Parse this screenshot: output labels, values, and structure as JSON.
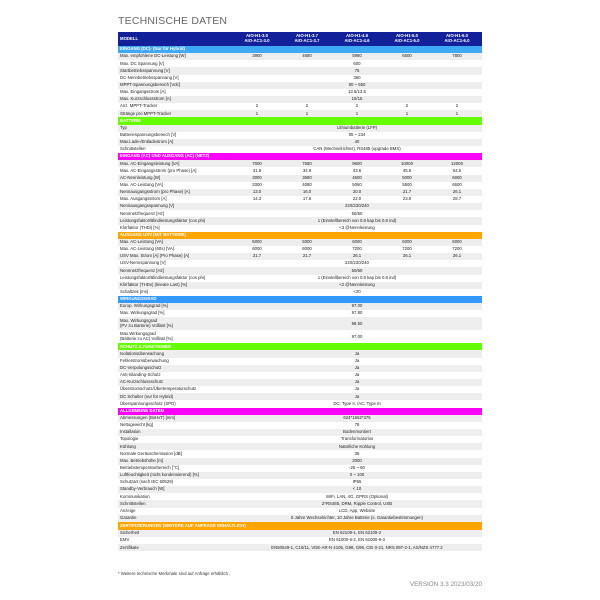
{
  "title": "TECHNISCHE DATEN",
  "header": {
    "label": "MODELL",
    "models": [
      [
        "AIO-H1-3.0",
        "AIO-AC1-3.0"
      ],
      [
        "AIO-H1-3.7",
        "AIO-AC1-3.7"
      ],
      [
        "AIO-H1-4.6",
        "AIO-AC1-4.6"
      ],
      [
        "AIO-H1-5.0",
        "AIO-AC1-5.0"
      ],
      [
        "AIO-H1-6.0",
        "AIO-AC1-6.0"
      ]
    ],
    "color": "#12209a"
  },
  "sections": [
    {
      "title": "EINGANG (DC)- (Nur für Hybrid)",
      "color": "#3fa9f5",
      "rows": [
        {
          "label": "Max. empfohlene DC-Leistung [W]",
          "values": [
            "3900",
            "4680",
            "5980",
            "6500",
            "7800"
          ]
        },
        {
          "label": "Max. DC Spannung [V]",
          "value": "600"
        },
        {
          "label": "Startbetriebsspannung [V]",
          "value": "75"
        },
        {
          "label": "DC-Nennbetriebsspannung [V]",
          "value": "360"
        },
        {
          "label": "MPPT-Spannungsbereich [Vdc]",
          "value": "80 ~ 550"
        },
        {
          "label": "Max. Eingangsstrom [A]",
          "value": "13.5/13.5"
        },
        {
          "label": "Max. Kurzschlussstrom [A]",
          "value": "15/15"
        },
        {
          "label": "Anz. MPPT-Tracker",
          "values": [
            "2",
            "2",
            "2",
            "2",
            "2"
          ]
        },
        {
          "label": "Stränge pro MPPT-Tracker",
          "values": [
            "1",
            "1",
            "1",
            "1",
            "1"
          ]
        }
      ]
    },
    {
      "title": "BATTERIE",
      "color": "#66ff00",
      "rows": [
        {
          "label": "Typ",
          "value": "Lithiumbatterie (LFP)"
        },
        {
          "label": "Batteriespannungsbereich [V]",
          "value": "85 ~ 234"
        },
        {
          "label": "Max.Lade-/Entladestrom [A]",
          "value": "40"
        },
        {
          "label": "Schnittstellen",
          "value": "CAN (Wechselrichter), RS485 (upgrade BMS)"
        }
      ]
    },
    {
      "title": "EINGANG (AC) UND AUSGANG (AC) (NETZ)",
      "color": "#ff00ff",
      "rows": [
        {
          "label": "Max. AC-Eingangsleistung [VA]",
          "values": [
            "7000",
            "7680",
            "9600",
            "10000",
            "12000"
          ]
        },
        {
          "label": "Max. AC-Eingangsstrom (pro Phase) [A]",
          "values": [
            "31.8",
            "34.9",
            "43.6",
            "45.5",
            "54.5"
          ]
        },
        {
          "label": "AC-Nennleistung [W]",
          "values": [
            "3000",
            "3680",
            "4600",
            "5000",
            "6000"
          ]
        },
        {
          "label": "Max. AC-Leistung [VA]",
          "values": [
            "3300",
            "4080",
            "5060",
            "5500",
            "6600"
          ]
        },
        {
          "label": "Nennausgangsstrom (pro Phase) [A]",
          "values": [
            "13.0",
            "16.0",
            "20.0",
            "21.7",
            "26.1"
          ]
        },
        {
          "label": "Max. Ausgangsstrom [A]",
          "values": [
            "14.3",
            "17.6",
            "22.0",
            "23.9",
            "28.7"
          ]
        },
        {
          "label": "Nennausgangsspannung [V]",
          "value": "220/230/240"
        },
        {
          "label": "Nennnetzfrequenz [Hz]",
          "value": "50/60"
        },
        {
          "label": "Leistungsfaktor/Blindleistungsfaktor (cos phi)",
          "value": "1 (Einstellbereich von 0.8 kap bis 0.8 ind)"
        },
        {
          "label": "Klirrfaktor (THDi) [%]",
          "value": "<3 @Nennleistung"
        }
      ]
    },
    {
      "title": "AUSGANG USV (MIT BATTERIE)",
      "color": "#ffa500",
      "rows": [
        {
          "label": "Max. AC-Leistung [VA]",
          "values": [
            "5000",
            "5000",
            "6000",
            "6000",
            "6000"
          ]
        },
        {
          "label": "Max. AC-Leistung (60s) [VA]",
          "values": [
            "6000",
            "6000",
            "7200",
            "7200",
            "7200"
          ]
        },
        {
          "label": "USV Max. Strom [A] (Pro Phase) [A]",
          "values": [
            "21.7",
            "21.7",
            "26.1",
            "26.1",
            "26.1"
          ]
        },
        {
          "label": "USV-Nennspannung [V]",
          "value": "220/230/240"
        },
        {
          "label": "Nennnetzfrequenz [Hz]",
          "value": "50/60"
        },
        {
          "label": "Leistungsfaktor/Blindleistungsfaktor (cos phi)",
          "value": "1 (Einstellbereich von 0.8 kap bis 0.8 ind)"
        },
        {
          "label": "Klirrfaktor (THDv) (lineare Last) [%]",
          "value": "<2 @Nennleistung"
        },
        {
          "label": "Schaltzeit [ms]",
          "value": "<20"
        }
      ]
    },
    {
      "title": "WIRKUNGSGRAD",
      "color": "#3399ff",
      "rows": [
        {
          "label": "Europ. Wirkungsgrad [%]",
          "value": "97.00"
        },
        {
          "label": "Max. Wirkungsgrad [%]",
          "value": "97.80"
        },
        {
          "label": "Max. Wirkungsgrad\n(PV zu Barterie) Volllast [%]",
          "value": "98.50",
          "tall": true
        },
        {
          "label": "Max.Wirkungsgrad\n (Batterie zu AC) Volllast [%]",
          "value": "97.00",
          "tall": true
        }
      ]
    },
    {
      "title": "SCHUTZ & FUNKTIONEN",
      "color": "#66ff00",
      "rows": [
        {
          "label": "Isolationsüberwachung",
          "value": "Ja"
        },
        {
          "label": "Fehlerstromüberwachung",
          "value": "Ja"
        },
        {
          "label": "DC-Verpolungsschutz",
          "value": "Ja"
        },
        {
          "label": "Anti-Islanding-Schutz",
          "value": "Ja"
        },
        {
          "label": "AC-Kurzschlussschutz",
          "value": "Ja"
        },
        {
          "label": "Überstromschutz/Übertemperaturschutz",
          "value": "Ja"
        },
        {
          "label": "DC Schalter (nur für Hybrid)",
          "value": "Ja"
        },
        {
          "label": "Überspannungsschutz (SPD)",
          "value": "DC: Type II, /AC: Type III"
        }
      ]
    },
    {
      "title": "ALLGEMEINE DATEN",
      "color": "#ff00ff",
      "rows": [
        {
          "label": "Abmessungen (BxHxT) [mm]",
          "value": "624*1662*375"
        },
        {
          "label": "Nettogewicht [kg]",
          "value": "78"
        },
        {
          "label": "Installation",
          "value": "Bodenmontiert"
        },
        {
          "label": "Topologie",
          "value": "Transformatorlos"
        },
        {
          "label": "Kühlung",
          "value": "Natürliche Kühlung"
        },
        {
          "label": "Normale Geräuschemission [dB]",
          "value": "35"
        },
        {
          "label": "Max. Betriebshöhe [m]",
          "value": "2000"
        },
        {
          "label": "Betriebstemperaturbereich [°C]",
          "value": "-25 ~ 60"
        },
        {
          "label": "Luftfeuchtigkeit (nicht kondensierend) [%]",
          "value": "0 ~ 100"
        },
        {
          "label": "Schutzart (nach IEC 60529)",
          "value": "IP65"
        },
        {
          "label": "Standby-Verbrauch [W]",
          "value": "< 10"
        },
        {
          "label": "Kommunikation",
          "value": "WiFi, LAN, 4G, GPRS (Optional)"
        },
        {
          "label": "Schnittstellen",
          "value": "2*RS485, DRM, Ripple Control, USB"
        },
        {
          "label": "Anzeige",
          "value": "LCD, App, Website"
        },
        {
          "label": "Garantie",
          "value": "5 Jahre Wechselrichter, 10 Jahre Batterie (s. Garantiebestimmungen)"
        }
      ]
    },
    {
      "title": "ZERTIFIZIERUNGEN (WEITERE AUF ANFRAGE ERHÄLTLICH)",
      "color": "#ffa500",
      "rows": [
        {
          "label": "Sicherheit",
          "value": "EN 62109-1, EN 62109-2"
        },
        {
          "label": "EMV",
          "value": "EN 61000-6-2, EN 61000-6-3"
        },
        {
          "label": "Zertifikate",
          "value": "EN50549-1, C10/11, VDE-AR-N 4105, G98, G99, CEI 0-21, NRS 097-2-1, AS/NZS 4777.2"
        }
      ]
    }
  ],
  "footnote": "* Weitere technische Merkmale sind auf Anfrage erhältlich .",
  "version": "VERSION 3.3 2023/03/20"
}
